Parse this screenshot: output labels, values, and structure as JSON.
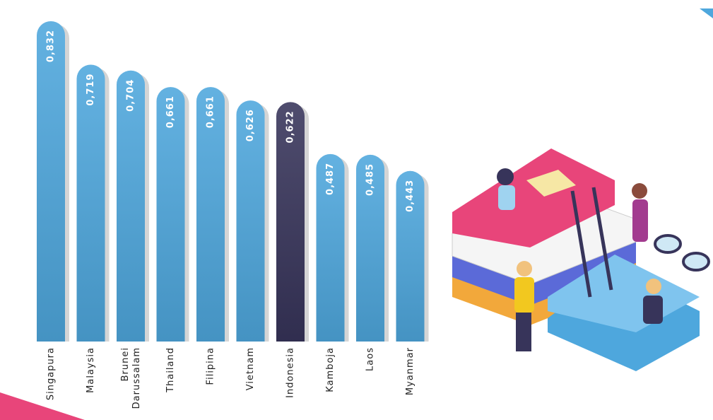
{
  "chart_data": {
    "type": "bar",
    "categories": [
      "Singapura",
      "Malaysia",
      "Brunei Darussalam",
      "Thailand",
      "Filipina",
      "Vietnam",
      "Indonesia",
      "Kamboja",
      "Laos",
      "Myanmar"
    ],
    "values": [
      0.832,
      0.719,
      0.704,
      0.661,
      0.661,
      0.626,
      0.622,
      0.487,
      0.485,
      0.443
    ],
    "value_labels": [
      "0,832",
      "0,719",
      "0,704",
      "0,661",
      "0,661",
      "0,626",
      "0,622",
      "0,487",
      "0,485",
      "0,443"
    ],
    "colors": [
      "#4ea7dd",
      "#4ea7dd",
      "#4ea7dd",
      "#4ea7dd",
      "#4ea7dd",
      "#4ea7dd",
      "#37345a",
      "#4ea7dd",
      "#4ea7dd",
      "#4ea7dd"
    ]
  }
}
